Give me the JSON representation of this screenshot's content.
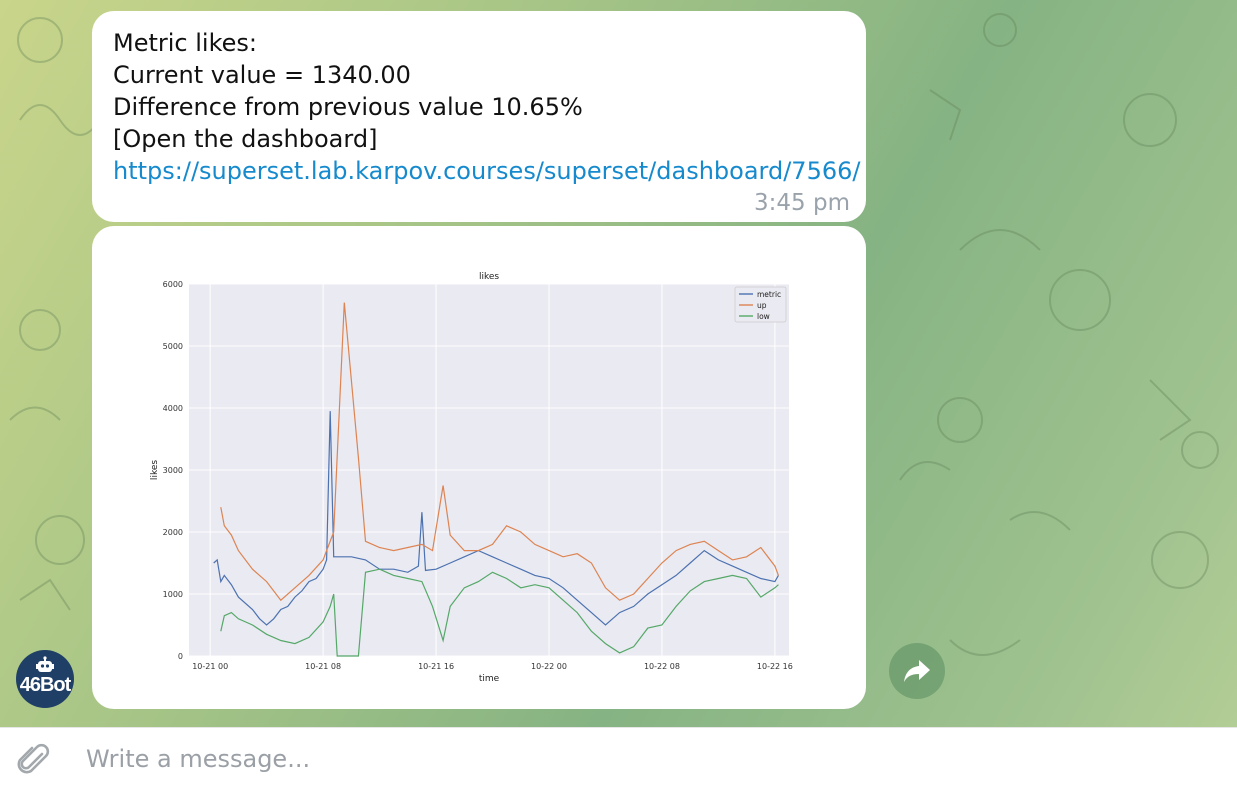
{
  "message": {
    "lines": [
      "Metric likes:",
      "Current value = 1340.00",
      "Difference from previous value 10.65%",
      "[Open the dashboard]"
    ],
    "link": "https://superset.lab.karpov.courses/superset/dashboard/7566/",
    "time": "3:45 pm"
  },
  "bot": {
    "avatar_label": "46Bot",
    "icon": "robot-icon"
  },
  "composer": {
    "placeholder": "Write a message...",
    "icon": "paperclip-icon"
  },
  "forward": {
    "icon": "forward-arrow-icon"
  },
  "colors": {
    "link": "#168acd",
    "metric": "#4c72b0",
    "up": "#dd8452",
    "low": "#55a868",
    "plot_bg": "#eaeaf2"
  },
  "chart_data": {
    "type": "line",
    "title": "likes",
    "xlabel": "time",
    "ylabel": "likes",
    "ylim": [
      0,
      6000
    ],
    "xlim": [
      "2022-10-20T22:30",
      "2022-10-22T17:00"
    ],
    "yticks": [
      0,
      1000,
      2000,
      3000,
      4000,
      5000,
      6000
    ],
    "xticks": [
      "10-21 00",
      "10-21 08",
      "10-21 16",
      "10-22 00",
      "10-22 08",
      "10-22 16"
    ],
    "xtick_values": [
      "2022-10-21T00:00",
      "2022-10-21T08:00",
      "2022-10-21T16:00",
      "2022-10-22T00:00",
      "2022-10-22T08:00",
      "2022-10-22T16:00"
    ],
    "grid": true,
    "legend": "top-right",
    "series": [
      {
        "name": "metric",
        "color": "#4c72b0",
        "x": [
          "2022-10-21T00:15",
          "2022-10-21T00:30",
          "2022-10-21T00:45",
          "2022-10-21T01:00",
          "2022-10-21T01:30",
          "2022-10-21T02:00",
          "2022-10-21T03:00",
          "2022-10-21T03:30",
          "2022-10-21T04:00",
          "2022-10-21T04:30",
          "2022-10-21T05:00",
          "2022-10-21T05:30",
          "2022-10-21T06:00",
          "2022-10-21T06:30",
          "2022-10-21T07:00",
          "2022-10-21T07:30",
          "2022-10-21T08:00",
          "2022-10-21T08:15",
          "2022-10-21T08:30",
          "2022-10-21T08:45",
          "2022-10-21T09:00",
          "2022-10-21T10:00",
          "2022-10-21T11:00",
          "2022-10-21T12:00",
          "2022-10-21T13:00",
          "2022-10-21T14:00",
          "2022-10-21T14:45",
          "2022-10-21T15:00",
          "2022-10-21T15:15",
          "2022-10-21T16:00",
          "2022-10-21T17:00",
          "2022-10-21T18:00",
          "2022-10-21T19:00",
          "2022-10-21T20:00",
          "2022-10-21T21:00",
          "2022-10-21T22:00",
          "2022-10-21T23:00",
          "2022-10-22T00:00",
          "2022-10-22T01:00",
          "2022-10-22T02:00",
          "2022-10-22T03:00",
          "2022-10-22T04:00",
          "2022-10-22T05:00",
          "2022-10-22T06:00",
          "2022-10-22T07:00",
          "2022-10-22T08:00",
          "2022-10-22T09:00",
          "2022-10-22T10:00",
          "2022-10-22T11:00",
          "2022-10-22T12:00",
          "2022-10-22T13:00",
          "2022-10-22T14:00",
          "2022-10-22T15:00",
          "2022-10-22T16:00",
          "2022-10-22T16:15"
        ],
        "values": [
          1500,
          1550,
          1200,
          1300,
          1150,
          950,
          750,
          600,
          500,
          600,
          750,
          800,
          950,
          1050,
          1200,
          1250,
          1400,
          1550,
          3950,
          1600,
          1600,
          1600,
          1550,
          1400,
          1400,
          1350,
          1450,
          2320,
          1380,
          1400,
          1500,
          1600,
          1700,
          1600,
          1500,
          1400,
          1300,
          1250,
          1100,
          900,
          700,
          500,
          700,
          800,
          1000,
          1150,
          1300,
          1500,
          1700,
          1550,
          1450,
          1350,
          1250,
          1200,
          1300
        ]
      },
      {
        "name": "up",
        "color": "#dd8452",
        "x": [
          "2022-10-21T00:45",
          "2022-10-21T01:00",
          "2022-10-21T01:30",
          "2022-10-21T02:00",
          "2022-10-21T03:00",
          "2022-10-21T04:00",
          "2022-10-21T05:00",
          "2022-10-21T06:00",
          "2022-10-21T07:00",
          "2022-10-21T08:00",
          "2022-10-21T08:45",
          "2022-10-21T09:30",
          "2022-10-21T10:30",
          "2022-10-21T11:00",
          "2022-10-21T12:00",
          "2022-10-21T13:00",
          "2022-10-21T14:00",
          "2022-10-21T15:00",
          "2022-10-21T15:45",
          "2022-10-21T16:30",
          "2022-10-21T17:00",
          "2022-10-21T18:00",
          "2022-10-21T19:00",
          "2022-10-21T20:00",
          "2022-10-21T21:00",
          "2022-10-21T22:00",
          "2022-10-21T23:00",
          "2022-10-22T00:00",
          "2022-10-22T01:00",
          "2022-10-22T02:00",
          "2022-10-22T03:00",
          "2022-10-22T04:00",
          "2022-10-22T05:00",
          "2022-10-22T06:00",
          "2022-10-22T07:00",
          "2022-10-22T08:00",
          "2022-10-22T09:00",
          "2022-10-22T10:00",
          "2022-10-22T11:00",
          "2022-10-22T12:00",
          "2022-10-22T13:00",
          "2022-10-22T14:00",
          "2022-10-22T15:00",
          "2022-10-22T16:00",
          "2022-10-22T16:15"
        ],
        "values": [
          2400,
          2100,
          1950,
          1700,
          1400,
          1200,
          900,
          1100,
          1300,
          1550,
          2000,
          5700,
          3200,
          1850,
          1750,
          1700,
          1750,
          1800,
          1700,
          2750,
          1950,
          1700,
          1700,
          1800,
          2100,
          2000,
          1800,
          1700,
          1600,
          1650,
          1500,
          1100,
          900,
          1000,
          1250,
          1500,
          1700,
          1800,
          1850,
          1700,
          1550,
          1600,
          1750,
          1450,
          1300
        ]
      },
      {
        "name": "low",
        "color": "#55a868",
        "x": [
          "2022-10-21T00:45",
          "2022-10-21T01:00",
          "2022-10-21T01:30",
          "2022-10-21T02:00",
          "2022-10-21T03:00",
          "2022-10-21T04:00",
          "2022-10-21T05:00",
          "2022-10-21T06:00",
          "2022-10-21T07:00",
          "2022-10-21T08:00",
          "2022-10-21T08:30",
          "2022-10-21T08:45",
          "2022-10-21T09:00",
          "2022-10-21T10:30",
          "2022-10-21T11:00",
          "2022-10-21T12:00",
          "2022-10-21T13:00",
          "2022-10-21T14:00",
          "2022-10-21T15:00",
          "2022-10-21T15:45",
          "2022-10-21T16:30",
          "2022-10-21T17:00",
          "2022-10-21T18:00",
          "2022-10-21T19:00",
          "2022-10-21T20:00",
          "2022-10-21T21:00",
          "2022-10-21T22:00",
          "2022-10-21T23:00",
          "2022-10-22T00:00",
          "2022-10-22T01:00",
          "2022-10-22T02:00",
          "2022-10-22T03:00",
          "2022-10-22T04:00",
          "2022-10-22T05:00",
          "2022-10-22T06:00",
          "2022-10-22T07:00",
          "2022-10-22T08:00",
          "2022-10-22T09:00",
          "2022-10-22T10:00",
          "2022-10-22T11:00",
          "2022-10-22T12:00",
          "2022-10-22T13:00",
          "2022-10-22T14:00",
          "2022-10-22T15:00",
          "2022-10-22T16:00",
          "2022-10-22T16:15"
        ],
        "values": [
          400,
          650,
          700,
          600,
          500,
          350,
          250,
          200,
          300,
          550,
          800,
          1000,
          0,
          0,
          1350,
          1400,
          1300,
          1250,
          1200,
          800,
          250,
          800,
          1100,
          1200,
          1350,
          1250,
          1100,
          1150,
          1100,
          900,
          700,
          400,
          200,
          50,
          150,
          450,
          500,
          800,
          1050,
          1200,
          1250,
          1300,
          1250,
          950,
          1100,
          1150
        ]
      }
    ]
  }
}
